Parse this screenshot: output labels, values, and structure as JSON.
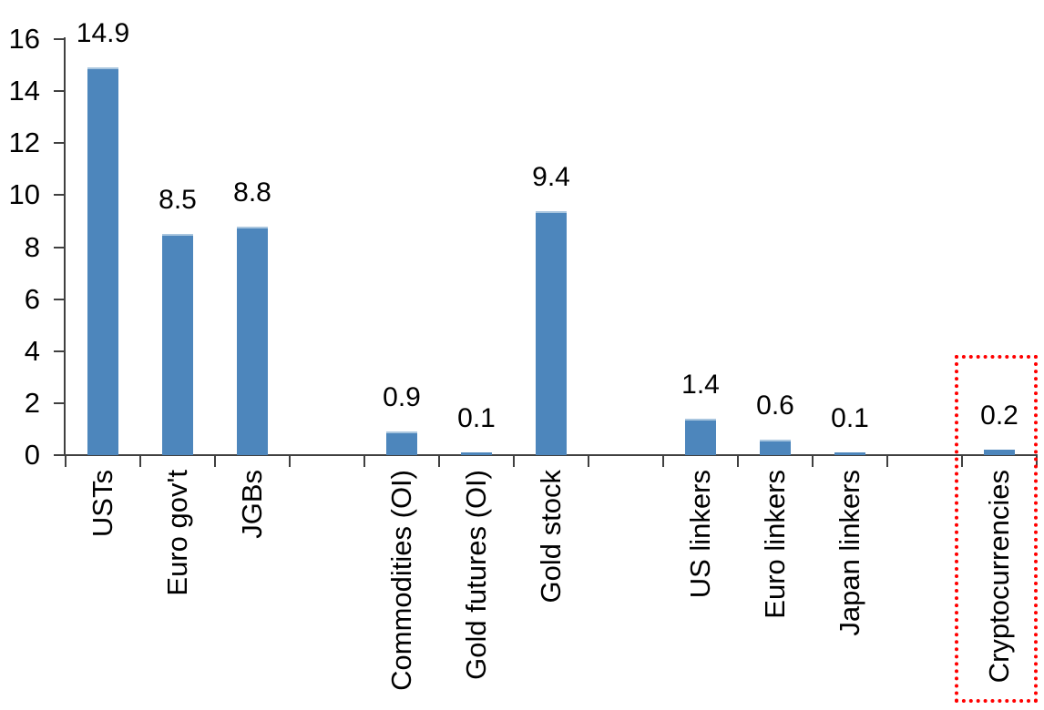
{
  "chart_data": {
    "type": "bar",
    "title": "",
    "xlabel": "",
    "ylabel": "",
    "categories": [
      "USTs",
      "Euro gov't",
      "JGBs",
      "Commodities (OI)",
      "Gold futures (OI)",
      "Gold stock",
      "US linkers",
      "Euro linkers",
      "Japan linkers",
      "Cryptocurrencies"
    ],
    "values": [
      14.9,
      8.5,
      8.8,
      0.9,
      0.1,
      9.4,
      1.4,
      0.6,
      0.1,
      0.2
    ],
    "data_labels": [
      "14.9",
      "8.5",
      "8.8",
      "0.9",
      "0.1",
      "9.4",
      "1.4",
      "0.6",
      "0.1",
      "0.2"
    ],
    "slot_indices": [
      0,
      1,
      2,
      4,
      5,
      6,
      8,
      9,
      10,
      12
    ],
    "total_slots": 13,
    "ylim": [
      0,
      16
    ],
    "y_ticks": [
      0,
      2,
      4,
      6,
      8,
      10,
      12,
      14,
      16
    ],
    "grid": false,
    "legend": "none",
    "bar_color": "#4D86BC",
    "bar_top_edge_color": "#A9C6DF",
    "axis_color": "#404040",
    "text_color": "#000000",
    "highlight": {
      "category": "Cryptocurrencies",
      "style": "red-dotted-box",
      "color": "#FF0000"
    }
  }
}
